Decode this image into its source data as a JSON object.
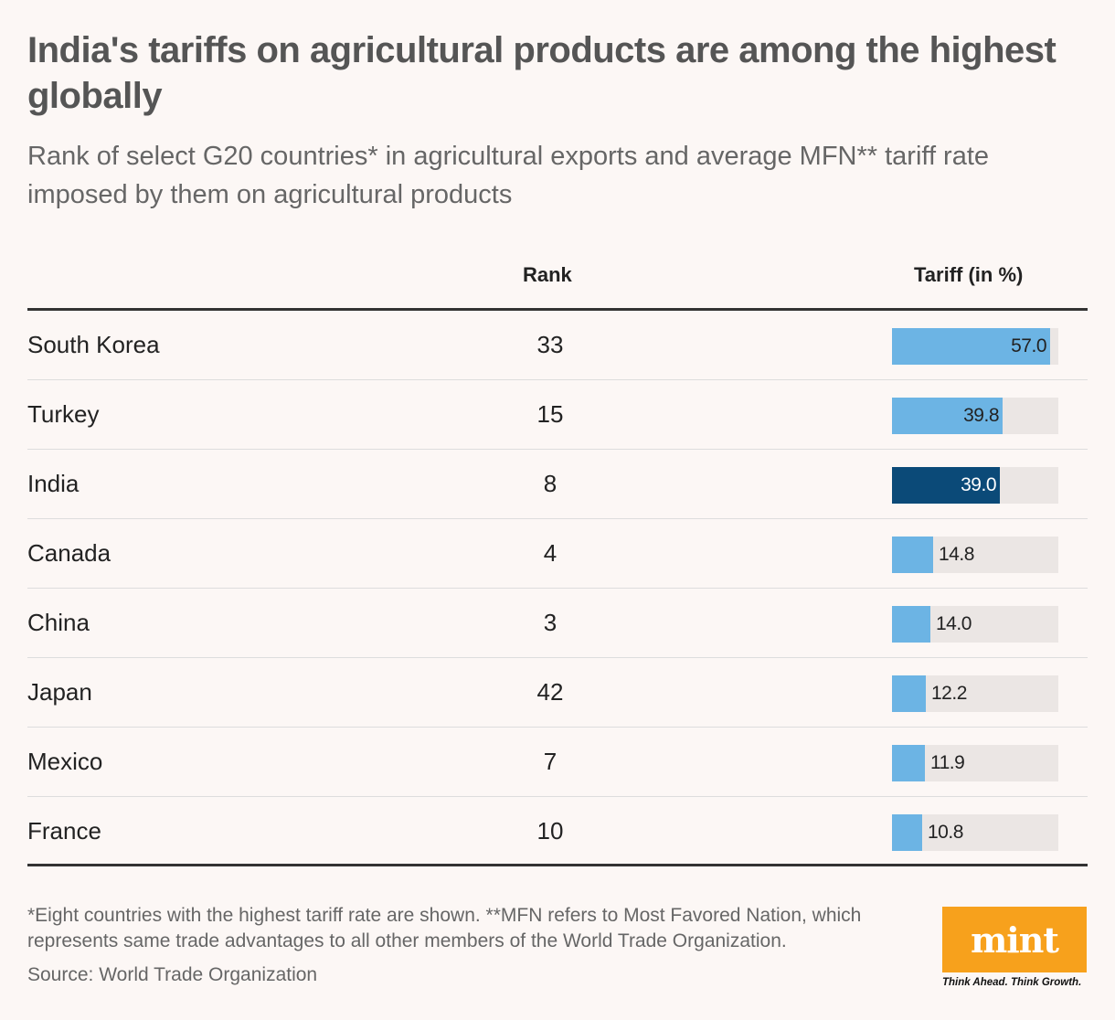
{
  "title": "India's tariffs on agricultural products are among the highest globally",
  "subtitle": "Rank of select G20 countries* in agricultural exports and average MFN** tariff rate imposed by them on agricultural products",
  "headers": {
    "rank": "Rank",
    "tariff": "Tariff (in %)"
  },
  "colors": {
    "bar": "#6cb4e4",
    "highlight": "#0b4a78",
    "track": "#ebe6e4"
  },
  "chart_data": {
    "type": "bar",
    "title": "India's tariffs on agricultural products are among the highest globally",
    "xlabel": "",
    "ylabel": "Tariff (in %)",
    "ylim": [
      0,
      60
    ],
    "categories": [
      "South Korea",
      "Turkey",
      "India",
      "Canada",
      "China",
      "Japan",
      "Mexico",
      "France"
    ],
    "ranks": [
      "33",
      "15",
      "8",
      "4",
      "3",
      "42",
      "7",
      "10"
    ],
    "values": [
      57.0,
      39.8,
      39.0,
      14.8,
      14.0,
      12.2,
      11.9,
      10.8
    ],
    "labels": [
      "57.0",
      "39.8",
      "39.0",
      "14.8",
      "14.0",
      "12.2",
      "11.9",
      "10.8"
    ],
    "highlight": "India"
  },
  "footnote": "*Eight countries with the highest tariff rate are shown. **MFN refers to Most Favored Nation, which represents same trade advantages to all other members of the World Trade Organization.",
  "source": "Source: World Trade Organization",
  "logo": {
    "name": "mint",
    "tagline": "Think Ahead. Think Growth."
  }
}
